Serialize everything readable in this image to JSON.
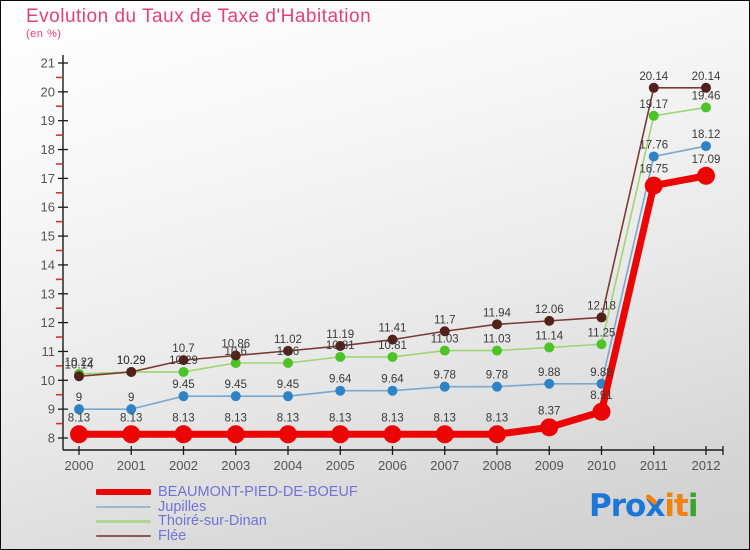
{
  "header": {
    "title": "Evolution du Taux de Taxe d'Habitation",
    "subtitle": "(en %)"
  },
  "chart_data": {
    "type": "line",
    "title": "Evolution du Taux de Taxe d'Habitation",
    "subtitle": "(en %)",
    "x": [
      2000,
      2001,
      2002,
      2003,
      2004,
      2005,
      2006,
      2007,
      2008,
      2009,
      2010,
      2011,
      2012
    ],
    "ylim": [
      8,
      21
    ],
    "ytick_step": 1,
    "ytick_minor_step": 0.5,
    "grid": false,
    "legend_position": "bottom-left",
    "axis_color": "#1a1a1a",
    "minor_tick_color": "#e03222",
    "tick_label_color": "#555555",
    "data_label_color": "#3a3a3a",
    "series": [
      {
        "name": "BEAUMONT-PIED-DE-BOEUF",
        "color": "#ec0505",
        "marker_color": "#ec0505",
        "line_width": 7,
        "marker_radius": 9,
        "values": [
          8.13,
          8.13,
          8.13,
          8.13,
          8.13,
          8.13,
          8.13,
          8.13,
          8.13,
          8.37,
          8.91,
          16.75,
          17.09
        ]
      },
      {
        "name": "Jupilles",
        "color": "#7aa8d0",
        "marker_color": "#2e82c6",
        "line_width": 1.6,
        "marker_radius": 5,
        "values": [
          9,
          9,
          9.45,
          9.45,
          9.45,
          9.64,
          9.64,
          9.78,
          9.78,
          9.88,
          9.88,
          17.76,
          18.12
        ]
      },
      {
        "name": "Thoiré-sur-Dinan",
        "color": "#a0d573",
        "marker_color": "#4cc428",
        "line_width": 1.6,
        "marker_radius": 5,
        "values": [
          10.22,
          10.29,
          10.29,
          10.6,
          10.6,
          10.81,
          10.81,
          11.03,
          11.03,
          11.14,
          11.25,
          19.17,
          19.46
        ]
      },
      {
        "name": "Flée",
        "color": "#7d3a33",
        "marker_color": "#53201a",
        "line_width": 1.6,
        "marker_radius": 5,
        "values": [
          10.14,
          10.29,
          10.7,
          10.86,
          11.02,
          11.19,
          11.41,
          11.7,
          11.94,
          12.06,
          12.18,
          20.14,
          20.14
        ]
      }
    ]
  },
  "legend": {
    "text_color": "#7173d8",
    "items": [
      {
        "label": "BEAUMONT-PIED-DE-BOEUF",
        "color": "#ec0505",
        "height": 6
      },
      {
        "label": "Jupilles",
        "color": "#9bb8ce",
        "height": 2.5
      },
      {
        "label": "Thoiré-sur-Dinan",
        "color": "#aed795",
        "height": 2.5
      },
      {
        "label": "Flée",
        "color": "#8b5a50",
        "height": 2.5
      }
    ]
  },
  "logo": {
    "text": "Proxiti",
    "letters": [
      {
        "ch": "P",
        "color": "#1c76d9"
      },
      {
        "ch": "r",
        "color": "#1c76d9"
      },
      {
        "ch": "o",
        "color": "#1c76d9"
      },
      {
        "ch": "x",
        "color": "#1c76d9",
        "accent": "#f5820b"
      },
      {
        "ch": "i",
        "color": "#f0820f"
      },
      {
        "ch": "t",
        "color": "#f0820f"
      },
      {
        "ch": "i",
        "color": "#3aa32c"
      }
    ]
  }
}
